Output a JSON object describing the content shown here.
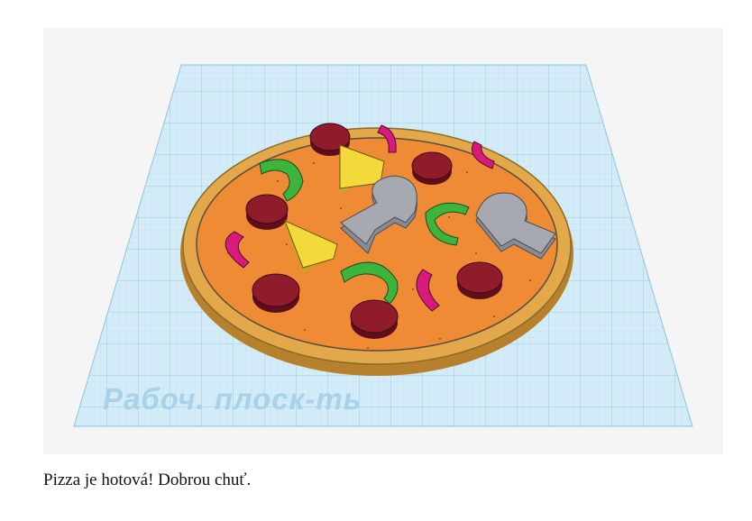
{
  "scene": {
    "workplane_label": "Рабоч. плоск-ть",
    "colors": {
      "background": "#f5f5f5",
      "workplane": "#cde9f5",
      "grid_line": "#a8d3e8",
      "crust": "#e2a84a",
      "sauce": "#ef8a35",
      "pepperoni": "#8f1b2b",
      "green_pepper": "#3db53d",
      "onion": "#d81b7a",
      "cheese": "#f3d93a",
      "mushroom": "#a7a9b0"
    }
  },
  "caption": "Pizza je hotová! Dobrou chuť."
}
